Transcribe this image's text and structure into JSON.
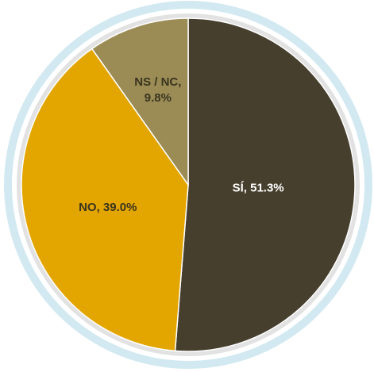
{
  "chart_data": {
    "type": "pie",
    "title": "",
    "slices": [
      {
        "name": "SÍ",
        "label": "SÍ, 51.3%",
        "value": 51.3,
        "color": "#463f2d",
        "label_style": "light"
      },
      {
        "name": "NO",
        "label": "NO, 39.0%",
        "value": 39.0,
        "color": "#e3a500",
        "label_style": "dark"
      },
      {
        "name": "NS / NC",
        "label": [
          "NS / NC,",
          "9.8%"
        ],
        "value": 9.8,
        "color": "#9b8c55",
        "label_style": "dark"
      }
    ],
    "start_angle_deg": 0,
    "direction": "clockwise",
    "legend": "none",
    "colors": {
      "ring_outer": "#d3e9f2",
      "ring_rim": "#e2e2e2"
    }
  }
}
